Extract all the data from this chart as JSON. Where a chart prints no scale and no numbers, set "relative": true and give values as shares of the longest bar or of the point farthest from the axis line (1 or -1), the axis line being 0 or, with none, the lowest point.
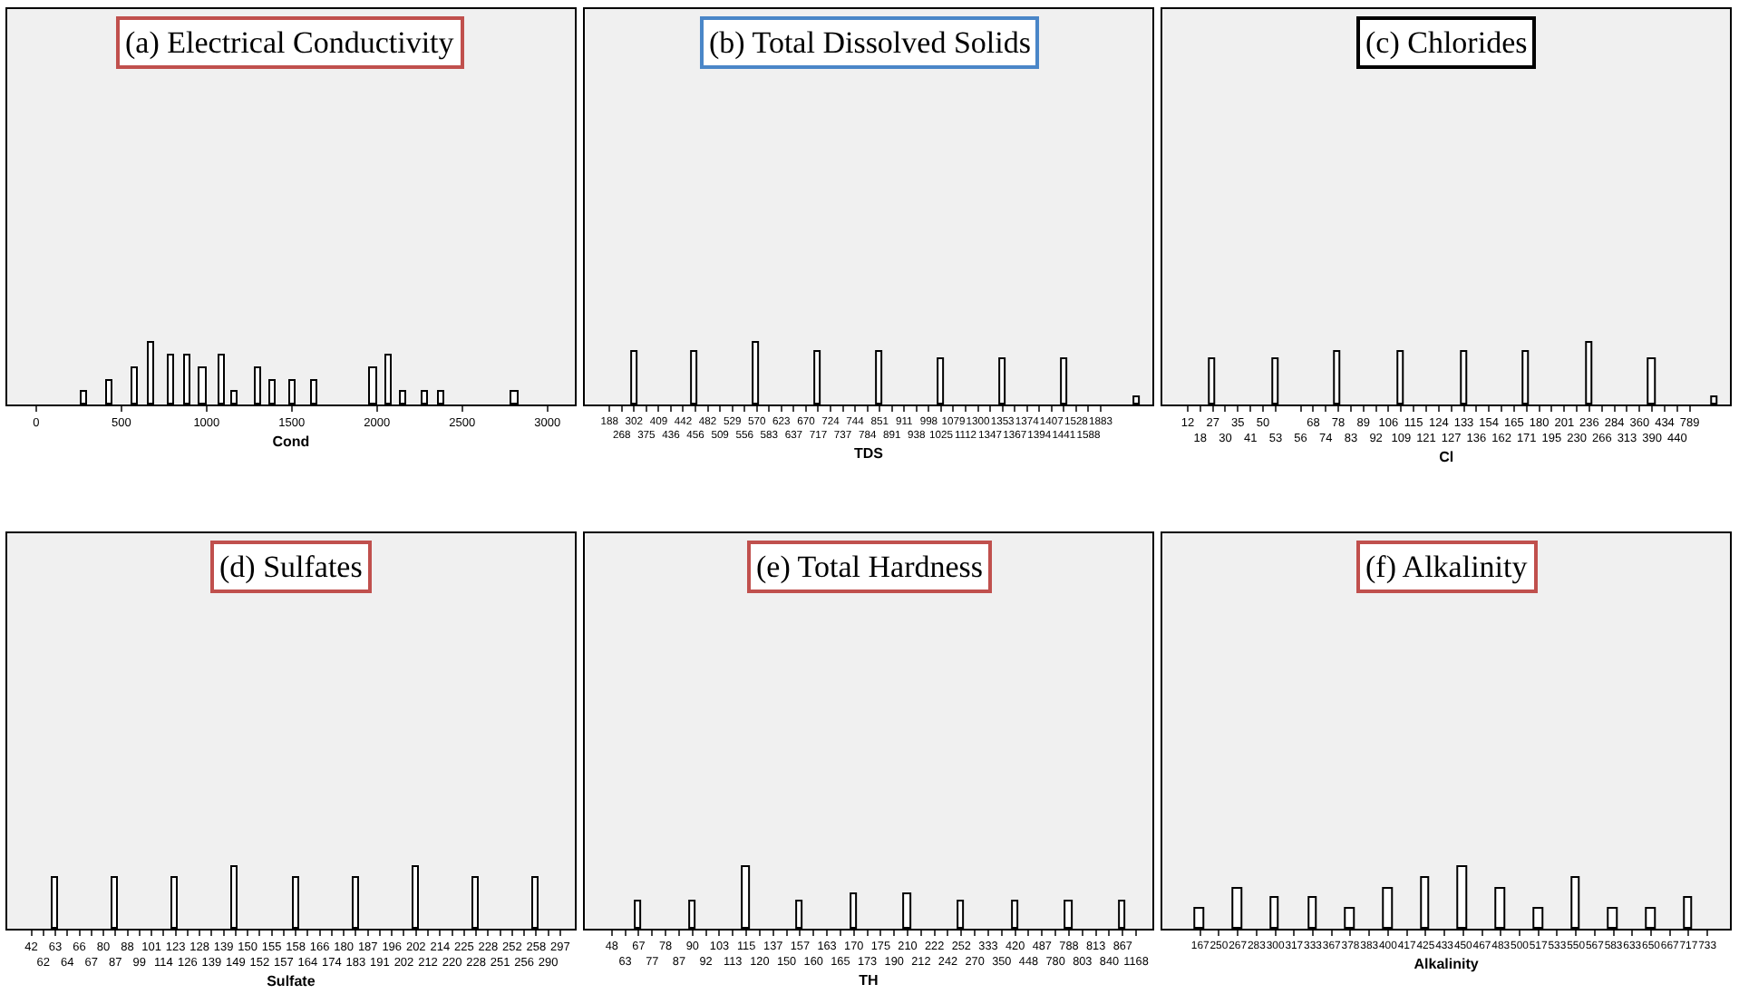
{
  "chart_data": [
    {
      "type": "bar",
      "relative": true,
      "title": "(a) Electrical Conductivity",
      "xlabel": "Cond",
      "tick_labels": "x",
      "xlim": [
        -170,
        3160
      ],
      "xticks": [
        0,
        500,
        1000,
        1500,
        2000,
        2500,
        3000
      ],
      "x": [
        280,
        430,
        580,
        680,
        790,
        890,
        980,
        1090,
        1170,
        1300,
        1390,
        1510,
        1630,
        1980,
        2070,
        2160,
        2280,
        2380,
        2810
      ],
      "values": [
        0.2,
        0.4,
        0.6,
        1,
        0.8,
        0.8,
        0.6,
        0.8,
        0.2,
        0.6,
        0.4,
        0.4,
        0.4,
        0.6,
        0.8,
        0.2,
        0.2,
        0.2,
        0.2
      ]
    },
    {
      "type": "bar",
      "relative": true,
      "title": "(b) Total Dissolved Solids",
      "xlabel": "TDS",
      "tick_labels": "x",
      "categories": [
        "188",
        "268",
        "302",
        "375",
        "409",
        "436",
        "442",
        "456",
        "482",
        "509",
        "529",
        "556",
        "570",
        "583",
        "623",
        "637",
        "670",
        "717",
        "724",
        "737",
        "744",
        "784",
        "851",
        "891",
        "911",
        "938",
        "998",
        "1025",
        "1079",
        "1112",
        "1300",
        "1347",
        "1353",
        "1367",
        "1374",
        "1394",
        "1407",
        "1441",
        "1528",
        "1588",
        "1883",
        null,
        null,
        null
      ],
      "values": [
        null,
        null,
        0.875,
        null,
        null,
        null,
        null,
        0.875,
        null,
        null,
        null,
        null,
        1,
        null,
        null,
        null,
        null,
        0.875,
        null,
        null,
        null,
        null,
        0.875,
        null,
        null,
        null,
        null,
        0.75,
        null,
        null,
        null,
        null,
        0.75,
        null,
        null,
        null,
        null,
        0.75,
        null,
        null,
        null,
        null,
        null,
        0.125
      ]
    },
    {
      "type": "bar",
      "relative": true,
      "title": "(c) Chlorides",
      "xlabel": "Cl",
      "tick_labels": "x",
      "categories": [
        "12",
        "18",
        "27",
        "30",
        "35",
        "41",
        "50",
        "53",
        null,
        "56",
        "68",
        "74",
        "78",
        "83",
        "89",
        "92",
        "106",
        "109",
        "115",
        "121",
        "124",
        "127",
        "133",
        "136",
        "154",
        "162",
        "165",
        "171",
        "180",
        "195",
        "201",
        "230",
        "236",
        "266",
        "284",
        "313",
        "360",
        "390",
        "434",
        "440",
        "789",
        null,
        null
      ],
      "values": [
        null,
        null,
        0.75,
        null,
        null,
        null,
        null,
        0.75,
        null,
        null,
        null,
        null,
        0.875,
        null,
        null,
        null,
        null,
        0.875,
        null,
        null,
        null,
        null,
        0.875,
        null,
        null,
        null,
        null,
        0.875,
        null,
        null,
        null,
        null,
        1,
        null,
        null,
        null,
        null,
        0.75,
        null,
        null,
        null,
        null,
        0.125
      ]
    },
    {
      "type": "bar",
      "relative": true,
      "title": "(d) Sulfates",
      "xlabel": "Sulfate",
      "tick_labels": "x",
      "categories": [
        "42",
        "62",
        "63",
        "64",
        "66",
        "67",
        "80",
        "87",
        "88",
        "99",
        "101",
        "114",
        "123",
        "126",
        "128",
        "139",
        "139",
        "149",
        "150",
        "152",
        "155",
        "157",
        "158",
        "164",
        "166",
        "174",
        "180",
        "183",
        "187",
        "191",
        "196",
        "202",
        "202",
        "212",
        "214",
        "220",
        "225",
        "228",
        "228",
        "251",
        "252",
        "256",
        "258",
        "290",
        "297"
      ],
      "values": [
        null,
        null,
        0.83,
        null,
        null,
        null,
        null,
        0.83,
        null,
        null,
        null,
        null,
        0.83,
        null,
        null,
        null,
        null,
        1,
        null,
        null,
        null,
        null,
        0.83,
        null,
        null,
        null,
        null,
        0.83,
        null,
        null,
        null,
        null,
        1,
        null,
        null,
        null,
        null,
        0.83,
        null,
        null,
        null,
        null,
        0.83,
        null,
        null
      ]
    },
    {
      "type": "bar",
      "relative": true,
      "title": "(e) Total Hardness",
      "xlabel": "TH",
      "tick_labels": "x",
      "categories": [
        "48",
        "63",
        "67",
        "77",
        "78",
        "87",
        "90",
        "92",
        "103",
        "113",
        "115",
        "120",
        "137",
        "150",
        "157",
        "160",
        "163",
        "165",
        "170",
        "173",
        "175",
        "190",
        "210",
        "212",
        "222",
        "242",
        "252",
        "270",
        "333",
        "350",
        "420",
        "448",
        "487",
        "780",
        "788",
        "803",
        "813",
        "840",
        "867",
        "1168"
      ],
      "values": [
        null,
        null,
        0.44,
        null,
        null,
        null,
        0.44,
        null,
        null,
        null,
        1,
        null,
        null,
        null,
        0.44,
        null,
        null,
        null,
        0.56,
        null,
        null,
        null,
        0.56,
        null,
        null,
        null,
        0.44,
        null,
        null,
        null,
        0.44,
        null,
        null,
        null,
        0.44,
        null,
        null,
        null,
        0.44,
        null
      ]
    },
    {
      "type": "bar",
      "relative": true,
      "title": "(f) Alkalinity",
      "xlabel": "Alkalinity",
      "tick_labels": "x",
      "categories": [
        "167",
        "250",
        "267",
        "283",
        "300",
        "317",
        "333",
        "367",
        "378",
        "383",
        "400",
        "417",
        "425",
        "433",
        "450",
        "467",
        "483",
        "500",
        "517",
        "533",
        "550",
        "567",
        "583",
        "633",
        "650",
        "667",
        "717",
        "733"
      ],
      "values": [
        0.33,
        null,
        0.67,
        null,
        0.5,
        null,
        0.5,
        null,
        0.33,
        null,
        0.67,
        null,
        0.83,
        null,
        1,
        null,
        0.67,
        null,
        0.33,
        null,
        0.83,
        null,
        0.33,
        null,
        0.33,
        null,
        0.5,
        null
      ]
    }
  ]
}
